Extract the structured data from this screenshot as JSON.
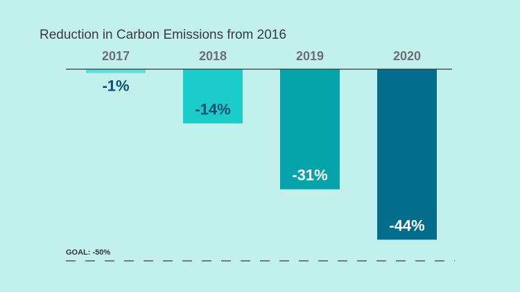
{
  "chart_data": {
    "type": "bar",
    "title": "Reduction in Carbon Emissions from 2016",
    "xlabel": "",
    "ylabel": "",
    "categories": [
      "2017",
      "2018",
      "2019",
      "2020"
    ],
    "values": [
      -1,
      -14,
      -31,
      -44
    ],
    "data_labels": [
      "-1%",
      "-14%",
      "-31%",
      "-44%"
    ],
    "ylim": [
      -50,
      0
    ],
    "grid": false,
    "legend": "none",
    "goal": {
      "value": -50,
      "label": "GOAL: -50%"
    },
    "colors": {
      "background": "#c2f0ed",
      "bars": [
        "#5ce0dc",
        "#1ccccb",
        "#06a3aa",
        "#046d8c"
      ],
      "labels": [
        "#0b4f73",
        "#0b4f73",
        "#ffffff",
        "#ffffff"
      ],
      "axis": "#333333",
      "goal_line": "#555555"
    }
  }
}
